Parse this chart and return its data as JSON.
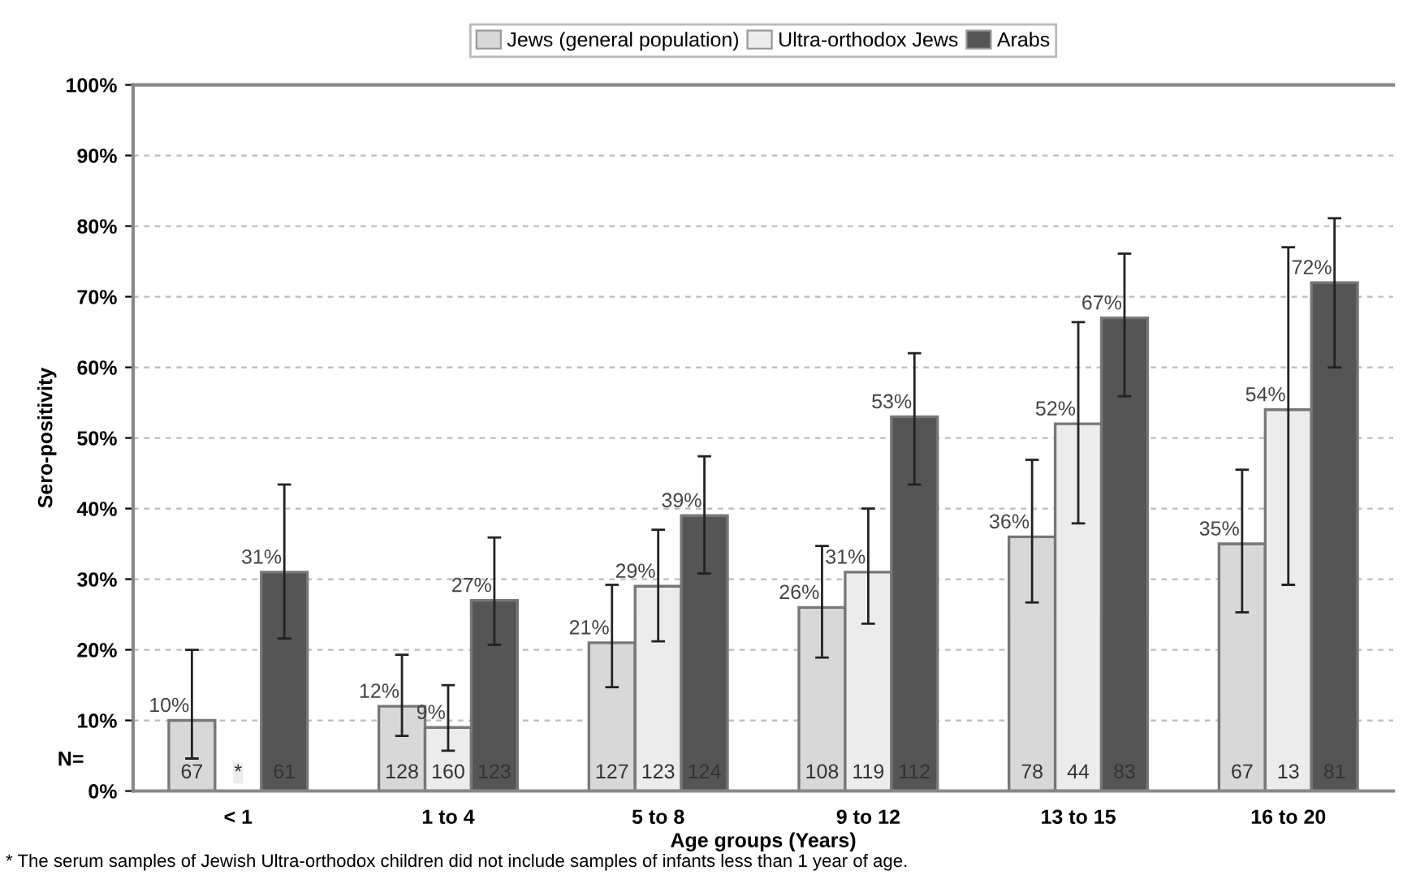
{
  "chart_data": {
    "type": "bar",
    "xlabel": "Age groups (Years)",
    "ylabel": "Sero-positivity",
    "categories": [
      "< 1",
      "1 to 4",
      "5 to 8",
      "9 to 12",
      "13 to 15",
      "16 to 20"
    ],
    "series": [
      {
        "name": "Jews (general population)",
        "color": "#d8d8d8",
        "values": [
          10,
          12,
          21,
          26,
          36,
          35
        ],
        "value_labels": [
          "10%",
          "12%",
          "21%",
          "26%",
          "36%",
          "35%"
        ],
        "errors": [
          [
            4.6,
            20
          ],
          [
            7.8,
            19.3
          ],
          [
            14.7,
            29.2
          ],
          [
            18.9,
            34.7
          ],
          [
            26.7,
            46.9
          ],
          [
            25.3,
            45.5
          ]
        ]
      },
      {
        "name": "Ultra-orthodox Jews",
        "color": "#ececec",
        "values": [
          null,
          9,
          29,
          31,
          52,
          54
        ],
        "value_labels": [
          null,
          "9%",
          "29%",
          "31%",
          "52%",
          "54%"
        ],
        "errors": [
          null,
          [
            5.7,
            15
          ],
          [
            21.2,
            37
          ],
          [
            23.7,
            40
          ],
          [
            37.9,
            66.4
          ],
          [
            29.2,
            77
          ]
        ]
      },
      {
        "name": "Arabs",
        "color": "#555555",
        "values": [
          31,
          27,
          39,
          53,
          67,
          72
        ],
        "value_labels": [
          "31%",
          "27%",
          "39%",
          "53%",
          "67%",
          "72%"
        ],
        "errors": [
          [
            21.6,
            43.4
          ],
          [
            20.7,
            35.9
          ],
          [
            30.8,
            47.4
          ],
          [
            43.4,
            62
          ],
          [
            55.9,
            76.1
          ],
          [
            60,
            81.1
          ]
        ]
      }
    ],
    "ylim": [
      0,
      100
    ],
    "yticks": [
      {
        "value": 0,
        "label": "0%"
      },
      {
        "value": 10,
        "label": "10%"
      },
      {
        "value": 20,
        "label": "20%"
      },
      {
        "value": 30,
        "label": "30%"
      },
      {
        "value": 40,
        "label": "40%"
      },
      {
        "value": 50,
        "label": "50%"
      },
      {
        "value": 60,
        "label": "60%"
      },
      {
        "value": 70,
        "label": "70%"
      },
      {
        "value": 80,
        "label": "80%"
      },
      {
        "value": 90,
        "label": "90%"
      },
      {
        "value": 100,
        "label": "100%"
      }
    ],
    "grid": "y",
    "legend": "top",
    "annotations": [
      "N=",
      "67",
      "*",
      "61",
      "128",
      "160",
      "123",
      "127",
      "123",
      "124",
      "108",
      "119",
      "112",
      "78",
      "44",
      "83",
      "67",
      "13",
      "81",
      "* The serum samples of Jewish Ultra-orthodox children did not include samples of infants less than 1 year of age."
    ]
  }
}
